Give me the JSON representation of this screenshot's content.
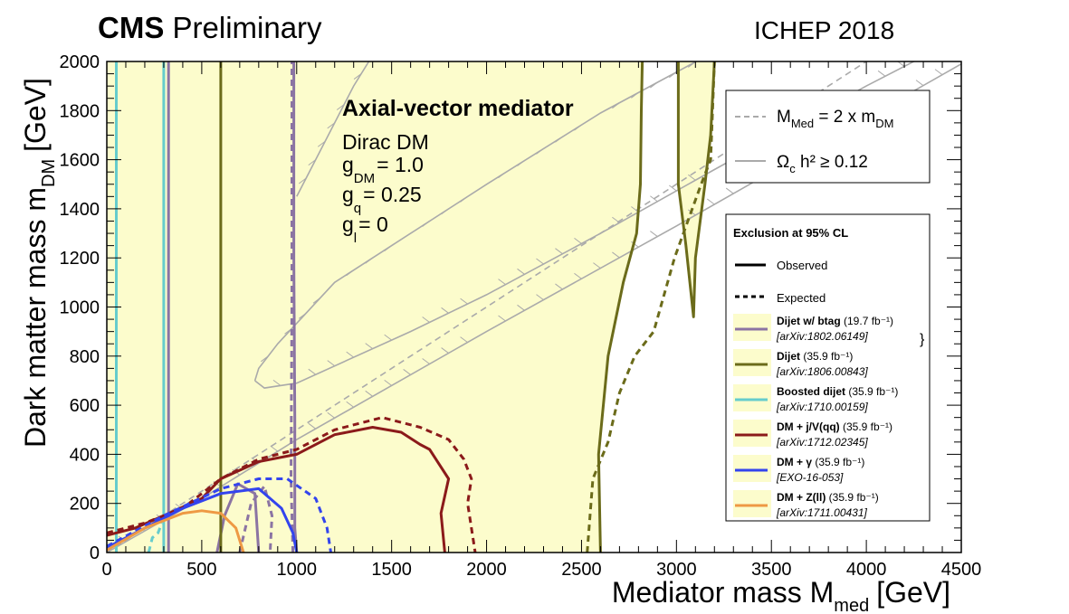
{
  "header": {
    "experiment": "CMS",
    "status": "Preliminary",
    "conference": "ICHEP 2018"
  },
  "chart_data": {
    "type": "line",
    "xlabel": "Mediator mass M",
    "xlabel_sub": "med",
    "xlabel_unit": "[GeV]",
    "ylabel": "Dark matter mass m",
    "ylabel_sub": "DM",
    "ylabel_unit": "[GeV]",
    "xlim": [
      0,
      4500
    ],
    "ylim": [
      0,
      2000
    ],
    "xticks": [
      0,
      500,
      1000,
      1500,
      2000,
      2500,
      3000,
      3500,
      4000,
      4500
    ],
    "yticks": [
      0,
      200,
      400,
      600,
      800,
      1000,
      1200,
      1400,
      1600,
      1800,
      2000
    ],
    "model": {
      "title": "Axial-vector mediator",
      "dm": "Dirac DM",
      "couplings": [
        {
          "symbol": "g",
          "sub": "DM",
          "value": "= 1.0"
        },
        {
          "symbol": "g",
          "sub": "q",
          "value": "= 0.25"
        },
        {
          "symbol": "g",
          "sub": "l",
          "value": "= 0"
        }
      ]
    },
    "reference_legend": [
      {
        "label": "M",
        "sub": "Med",
        "rest": " = 2 x m",
        "sub2": "DM",
        "style": "dashed-gray"
      },
      {
        "label": "Ω",
        "sub": "c",
        "rest": " h² ≥ 0.12",
        "style": "solid-gray"
      }
    ],
    "legend": {
      "title": "Exclusion at 95% CL",
      "observed": "Observed",
      "expected": "Expected",
      "entries": [
        {
          "name": "Dijet w/ btag",
          "lumi": "(19.7 fb⁻¹)",
          "ref": "[arXiv:1802.06149]",
          "color": "#8b74a3"
        },
        {
          "name": "Dijet",
          "lumi": "(35.9 fb⁻¹)",
          "ref": "[arXiv:1806.00843]",
          "color": "#6b6b1a"
        },
        {
          "name": "Boosted dijet",
          "lumi": "(35.9 fb⁻¹)",
          "ref": "[arXiv:1710.00159]",
          "color": "#66cccc"
        },
        {
          "name": "DM + j/V(qq)",
          "lumi": "(35.9 fb⁻¹)",
          "ref": "[arXiv:1712.02345]",
          "color": "#8b1a1a"
        },
        {
          "name": "DM + γ",
          "lumi": "(35.9 fb⁻¹)",
          "ref": "[EXO-16-053]",
          "color": "#3344ee"
        },
        {
          "name": "DM + Z(ll)",
          "lumi": "(35.9 fb⁻¹)",
          "ref": "[arXiv:1711.00431]",
          "color": "#ee9944"
        }
      ]
    },
    "fill_color": "#fcfccc",
    "excluded_regions": [
      {
        "x": [
          0,
          1000
        ],
        "y": [
          0,
          2000
        ]
      },
      {
        "x": [
          1000,
          2820
        ],
        "y": [
          0,
          2000
        ],
        "note": "bounded below by Ωh² ≥ 0.12 band"
      },
      {
        "x": [
          3010,
          3200
        ],
        "y": [
          960,
          2000
        ]
      }
    ],
    "series": [
      {
        "name": "Dijet w/ btag",
        "kind": "observed",
        "color": "#8b74a3",
        "points": [
          [
            325,
            0
          ],
          [
            325,
            2000
          ]
        ]
      },
      {
        "name": "Dijet w/ btag",
        "kind": "observed",
        "color": "#8b74a3",
        "points": [
          [
            1000,
            0
          ],
          [
            990,
            100
          ],
          [
            990,
            550
          ],
          [
            985,
            1200
          ],
          [
            985,
            2000
          ]
        ]
      },
      {
        "name": "Dijet w/ btag",
        "kind": "expected",
        "color": "#8b74a3",
        "points": [
          [
            980,
            0
          ],
          [
            970,
            300
          ],
          [
            975,
            1000
          ],
          [
            975,
            2000
          ]
        ]
      },
      {
        "name": "Dijet w/ btag",
        "kind": "observed",
        "color": "#8b74a3",
        "points": [
          [
            580,
            0
          ],
          [
            620,
            150
          ],
          [
            690,
            280
          ],
          [
            780,
            240
          ],
          [
            800,
            0
          ]
        ]
      },
      {
        "name": "Dijet w/ btag",
        "kind": "expected",
        "color": "#8b74a3",
        "points": [
          [
            700,
            0
          ],
          [
            760,
            200
          ],
          [
            830,
            270
          ],
          [
            870,
            150
          ],
          [
            860,
            0
          ]
        ]
      },
      {
        "name": "Dijet",
        "kind": "observed",
        "color": "#6b6b1a",
        "points": [
          [
            600,
            0
          ],
          [
            600,
            2000
          ]
        ]
      },
      {
        "name": "Dijet",
        "kind": "observed",
        "color": "#6b6b1a",
        "points": [
          [
            2600,
            0
          ],
          [
            2590,
            400
          ],
          [
            2640,
            800
          ],
          [
            2720,
            1100
          ],
          [
            2790,
            1300
          ],
          [
            2810,
            1500
          ],
          [
            2815,
            1800
          ],
          [
            2820,
            2000
          ]
        ]
      },
      {
        "name": "Dijet",
        "kind": "expected",
        "color": "#6b6b1a",
        "points": [
          [
            2530,
            0
          ],
          [
            2560,
            300
          ],
          [
            2640,
            450
          ],
          [
            2700,
            650
          ],
          [
            2780,
            800
          ],
          [
            2880,
            900
          ],
          [
            2990,
            1200
          ],
          [
            3130,
            1500
          ],
          [
            3180,
            1600
          ],
          [
            3200,
            2000
          ]
        ]
      },
      {
        "name": "Dijet",
        "kind": "observed",
        "color": "#6b6b1a",
        "points": [
          [
            3010,
            2000
          ],
          [
            3010,
            1500
          ],
          [
            3050,
            1250
          ],
          [
            3090,
            960
          ],
          [
            3100,
            1200
          ],
          [
            3150,
            1500
          ],
          [
            3180,
            1700
          ],
          [
            3200,
            2000
          ]
        ]
      },
      {
        "name": "Boosted dijet",
        "kind": "observed",
        "color": "#66cccc",
        "points": [
          [
            50,
            0
          ],
          [
            50,
            2000
          ]
        ]
      },
      {
        "name": "Boosted dijet",
        "kind": "observed",
        "color": "#66cccc",
        "points": [
          [
            300,
            0
          ],
          [
            300,
            2000
          ]
        ]
      },
      {
        "name": "Boosted dijet",
        "kind": "expected",
        "color": "#66cccc",
        "points": [
          [
            220,
            0
          ],
          [
            240,
            60
          ],
          [
            270,
            80
          ],
          [
            290,
            120
          ]
        ]
      },
      {
        "name": "DM + j/V(qq)",
        "kind": "observed",
        "color": "#8b1a1a",
        "points": [
          [
            0,
            70
          ],
          [
            150,
            100
          ],
          [
            300,
            150
          ],
          [
            500,
            220
          ],
          [
            600,
            300
          ],
          [
            800,
            370
          ],
          [
            1000,
            400
          ],
          [
            1200,
            480
          ],
          [
            1400,
            510
          ],
          [
            1550,
            490
          ],
          [
            1650,
            440
          ],
          [
            1700,
            420
          ],
          [
            1800,
            300
          ],
          [
            1760,
            160
          ],
          [
            1780,
            0
          ]
        ]
      },
      {
        "name": "DM + j/V(qq)",
        "kind": "expected",
        "color": "#8b1a1a",
        "points": [
          [
            0,
            80
          ],
          [
            200,
            120
          ],
          [
            400,
            180
          ],
          [
            600,
            300
          ],
          [
            800,
            380
          ],
          [
            1000,
            420
          ],
          [
            1200,
            500
          ],
          [
            1450,
            550
          ],
          [
            1650,
            510
          ],
          [
            1800,
            460
          ],
          [
            1880,
            380
          ],
          [
            1920,
            300
          ],
          [
            1900,
            200
          ],
          [
            1940,
            0
          ]
        ]
      },
      {
        "name": "DM + γ",
        "kind": "observed",
        "color": "#3344ee",
        "points": [
          [
            0,
            20
          ],
          [
            200,
            100
          ],
          [
            400,
            180
          ],
          [
            600,
            240
          ],
          [
            800,
            260
          ],
          [
            920,
            180
          ],
          [
            980,
            80
          ],
          [
            1000,
            0
          ]
        ]
      },
      {
        "name": "DM + γ",
        "kind": "expected",
        "color": "#3344ee",
        "points": [
          [
            0,
            25
          ],
          [
            300,
            150
          ],
          [
            600,
            260
          ],
          [
            800,
            300
          ],
          [
            950,
            300
          ],
          [
            1100,
            220
          ],
          [
            1160,
            100
          ],
          [
            1180,
            0
          ]
        ]
      },
      {
        "name": "DM + Z(ll)",
        "kind": "observed",
        "color": "#ee9944",
        "points": [
          [
            0,
            10
          ],
          [
            200,
            100
          ],
          [
            400,
            160
          ],
          [
            500,
            170
          ],
          [
            600,
            160
          ],
          [
            680,
            100
          ],
          [
            720,
            0
          ]
        ]
      }
    ],
    "reference_curves": {
      "mmed_2mdm": {
        "points": [
          [
            0,
            0
          ],
          [
            4500,
            2250
          ]
        ]
      },
      "relic_upper": {
        "points": [
          [
            780,
            700
          ],
          [
            800,
            750
          ],
          [
            900,
            850
          ],
          [
            1200,
            1100
          ],
          [
            1600,
            1300
          ],
          [
            2000,
            1500
          ],
          [
            2600,
            1790
          ],
          [
            3200,
            2040
          ],
          [
            4400,
            2540
          ]
        ]
      },
      "relic_lower": {
        "points": [
          [
            780,
            700
          ],
          [
            830,
            670
          ],
          [
            1000,
            690
          ],
          [
            1600,
            900
          ],
          [
            2000,
            1050
          ],
          [
            2600,
            1300
          ],
          [
            3200,
            1560
          ],
          [
            4000,
            1900
          ],
          [
            4500,
            2100
          ]
        ]
      },
      "relic_high": {
        "points": [
          [
            1000,
            1450
          ],
          [
            1300,
            1900
          ],
          [
            1380,
            2000
          ]
        ]
      },
      "relic_low": {
        "points": [
          [
            0,
            0
          ],
          [
            500,
            220
          ],
          [
            1000,
            460
          ],
          [
            2000,
            900
          ],
          [
            3000,
            1330
          ],
          [
            4000,
            1770
          ],
          [
            4500,
            1990
          ]
        ]
      }
    }
  }
}
